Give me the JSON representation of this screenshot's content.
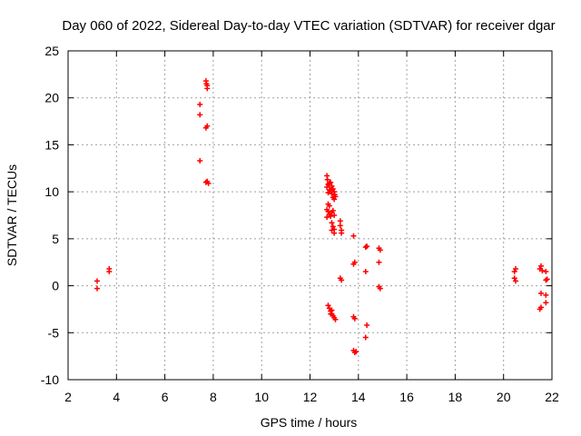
{
  "chart_data": {
    "type": "scatter",
    "title": "Day 060 of 2022, Sidereal Day-to-day VTEC variation (SDTVAR) for receiver dgar",
    "xlabel": "GPS time / hours",
    "ylabel": "SDTVAR / TECUs",
    "xlim": [
      2,
      22
    ],
    "ylim": [
      -10,
      25
    ],
    "xticks": [
      2,
      4,
      6,
      8,
      10,
      12,
      14,
      16,
      18,
      20,
      22
    ],
    "yticks": [
      -10,
      -5,
      0,
      5,
      10,
      15,
      20,
      25
    ],
    "grid": true,
    "marker": "+",
    "color": "#ff0000",
    "series": [
      {
        "name": "SDTVAR",
        "points": [
          [
            3.2,
            0.5
          ],
          [
            3.2,
            -0.3
          ],
          [
            3.7,
            1.5
          ],
          [
            3.7,
            1.8
          ],
          [
            7.45,
            19.3
          ],
          [
            7.45,
            18.2
          ],
          [
            7.45,
            13.3
          ],
          [
            7.7,
            21.8
          ],
          [
            7.72,
            21.5
          ],
          [
            7.75,
            21.0
          ],
          [
            7.75,
            21.3
          ],
          [
            7.7,
            16.8
          ],
          [
            7.75,
            17.0
          ],
          [
            7.7,
            11.0
          ],
          [
            7.75,
            11.1
          ],
          [
            7.8,
            10.9
          ],
          [
            12.7,
            11.7
          ],
          [
            12.72,
            11.3
          ],
          [
            12.75,
            10.8
          ],
          [
            12.7,
            10.5
          ],
          [
            12.8,
            10.9
          ],
          [
            12.85,
            11.0
          ],
          [
            12.9,
            10.6
          ],
          [
            12.95,
            10.3
          ],
          [
            13.0,
            10.0
          ],
          [
            13.02,
            9.7
          ],
          [
            13.05,
            9.5
          ],
          [
            13.0,
            9.2
          ],
          [
            12.9,
            9.8
          ],
          [
            12.85,
            10.2
          ],
          [
            12.95,
            9.4
          ],
          [
            12.75,
            9.9
          ],
          [
            12.8,
            10.2
          ],
          [
            12.75,
            8.7
          ],
          [
            12.8,
            8.5
          ],
          [
            12.7,
            8.1
          ],
          [
            12.75,
            7.9
          ],
          [
            12.8,
            7.6
          ],
          [
            12.85,
            7.4
          ],
          [
            12.9,
            7.8
          ],
          [
            12.95,
            8.0
          ],
          [
            13.0,
            7.5
          ],
          [
            12.7,
            7.3
          ],
          [
            12.9,
            6.7
          ],
          [
            12.95,
            6.3
          ],
          [
            13.0,
            6.0
          ],
          [
            12.9,
            5.9
          ],
          [
            13.0,
            5.6
          ],
          [
            13.25,
            6.9
          ],
          [
            13.25,
            6.4
          ],
          [
            13.3,
            5.9
          ],
          [
            13.3,
            5.6
          ],
          [
            13.25,
            0.8
          ],
          [
            13.3,
            0.6
          ],
          [
            12.75,
            -2.1
          ],
          [
            12.8,
            -2.4
          ],
          [
            12.85,
            -2.7
          ],
          [
            12.9,
            -3.0
          ],
          [
            12.95,
            -3.2
          ],
          [
            13.0,
            -3.4
          ],
          [
            13.05,
            -3.6
          ],
          [
            12.9,
            -2.6
          ],
          [
            12.85,
            -3.0
          ],
          [
            13.8,
            5.3
          ],
          [
            13.8,
            2.3
          ],
          [
            13.85,
            2.5
          ],
          [
            13.8,
            -3.3
          ],
          [
            13.85,
            -3.5
          ],
          [
            13.8,
            -6.9
          ],
          [
            13.85,
            -7.1
          ],
          [
            13.9,
            -7.0
          ],
          [
            14.3,
            4.1
          ],
          [
            14.35,
            4.2
          ],
          [
            14.3,
            1.5
          ],
          [
            14.35,
            -4.2
          ],
          [
            14.3,
            -5.5
          ],
          [
            14.85,
            4.0
          ],
          [
            14.9,
            3.8
          ],
          [
            14.85,
            2.5
          ],
          [
            14.85,
            -0.1
          ],
          [
            14.9,
            -0.3
          ],
          [
            20.45,
            1.5
          ],
          [
            20.5,
            1.8
          ],
          [
            20.45,
            0.8
          ],
          [
            20.5,
            0.5
          ],
          [
            21.55,
            2.1
          ],
          [
            21.5,
            1.8
          ],
          [
            21.6,
            1.6
          ],
          [
            21.55,
            -0.8
          ],
          [
            21.5,
            -2.5
          ],
          [
            21.55,
            -2.3
          ],
          [
            21.75,
            1.5
          ],
          [
            21.75,
            0.6
          ],
          [
            21.8,
            0.7
          ],
          [
            21.75,
            -1.0
          ],
          [
            21.75,
            -1.8
          ]
        ]
      }
    ]
  }
}
